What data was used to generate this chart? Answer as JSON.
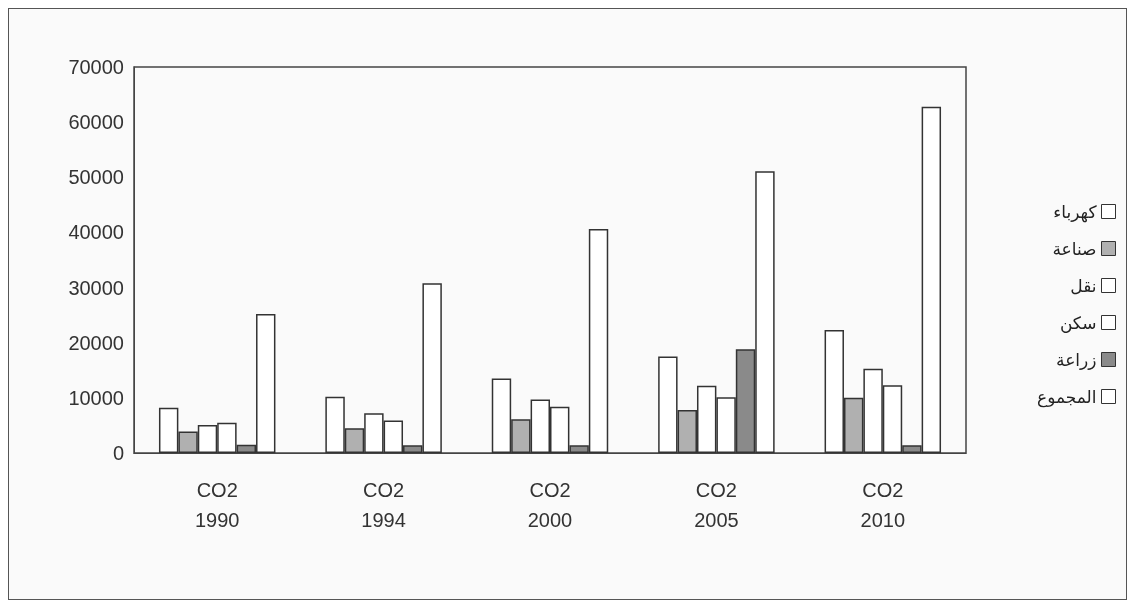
{
  "chart_data": {
    "type": "bar",
    "categories": [
      "CO2\n1990",
      "CO2\n1994",
      "CO2\n2000",
      "CO2\n2005",
      "CO2\n2010"
    ],
    "series": [
      {
        "name": "كهرباء",
        "color": "#ffffff",
        "values": [
          8200,
          10200,
          13500,
          17500,
          22300
        ]
      },
      {
        "name": "صناعة",
        "color": "#b0b0b0",
        "values": [
          3900,
          4500,
          6100,
          7800,
          10000
        ]
      },
      {
        "name": "نقل",
        "color": "#ffffff",
        "values": [
          5100,
          7200,
          9700,
          12200,
          15300
        ]
      },
      {
        "name": "سكن",
        "color": "#ffffff",
        "values": [
          5500,
          5900,
          8400,
          10100,
          12300
        ]
      },
      {
        "name": "زراعة",
        "color": "#8a8a8a",
        "values": [
          1500,
          1400,
          1400,
          18800,
          1400
        ]
      },
      {
        "name": "المجموع",
        "color": "#ffffff",
        "values": [
          25200,
          30800,
          40600,
          51100,
          62800
        ]
      }
    ],
    "ylim": [
      0,
      70000
    ],
    "yticks": [
      0,
      10000,
      20000,
      30000,
      40000,
      50000,
      60000,
      70000
    ],
    "grid": false,
    "legend": "right"
  }
}
